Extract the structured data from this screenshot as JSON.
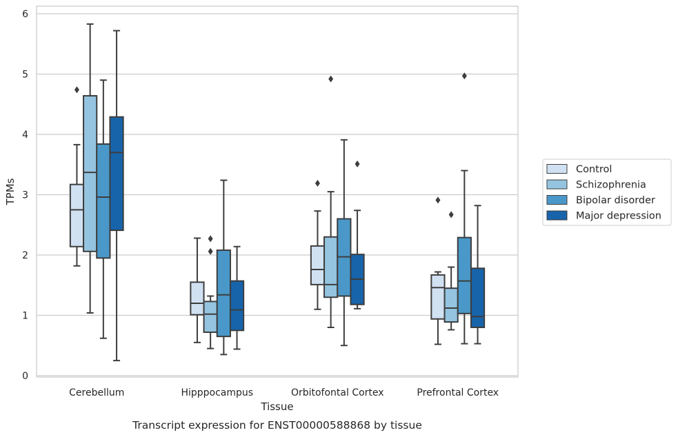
{
  "chart_data": {
    "type": "box",
    "title": "",
    "caption": "Transcript expression for ENST00000588868 by tissue",
    "xlabel": "Tissue",
    "ylabel": "TPMs",
    "ylim": [
      0,
      6.1
    ],
    "yticks": [
      0,
      1,
      2,
      3,
      4,
      5,
      6
    ],
    "grid": "horizontal",
    "legend_position": "right",
    "categories": [
      "Cerebellum",
      "Hipppocampus",
      "Orbitofontal Cortex",
      "Prefrontal Cortex"
    ],
    "series": [
      {
        "name": "Control",
        "color": "#d0e1f2",
        "boxes": [
          {
            "whislo": 1.82,
            "q1": 2.14,
            "med": 2.75,
            "q3": 3.17,
            "whishi": 3.83,
            "fliers": [
              4.74
            ]
          },
          {
            "whislo": 0.55,
            "q1": 1.01,
            "med": 1.2,
            "q3": 1.55,
            "whishi": 2.28,
            "fliers": []
          },
          {
            "whislo": 1.1,
            "q1": 1.51,
            "med": 1.76,
            "q3": 2.15,
            "whishi": 2.73,
            "fliers": [
              3.19
            ]
          },
          {
            "whislo": 0.52,
            "q1": 0.94,
            "med": 1.46,
            "q3": 1.67,
            "whishi": 1.72,
            "fliers": [
              2.91
            ]
          }
        ]
      },
      {
        "name": "Schizophrenia",
        "color": "#94c4df",
        "boxes": [
          {
            "whislo": 1.04,
            "q1": 2.06,
            "med": 3.37,
            "q3": 4.64,
            "whishi": 5.83,
            "fliers": []
          },
          {
            "whislo": 0.45,
            "q1": 0.72,
            "med": 1.02,
            "q3": 1.23,
            "whishi": 1.32,
            "fliers": [
              2.06,
              2.27
            ]
          },
          {
            "whislo": 0.8,
            "q1": 1.3,
            "med": 1.51,
            "q3": 2.3,
            "whishi": 3.05,
            "fliers": [
              4.92
            ]
          },
          {
            "whislo": 0.76,
            "q1": 0.89,
            "med": 1.12,
            "q3": 1.45,
            "whishi": 1.8,
            "fliers": [
              2.67
            ]
          }
        ]
      },
      {
        "name": "Bipolar disorder",
        "color": "#4a98c9",
        "boxes": [
          {
            "whislo": 0.62,
            "q1": 1.95,
            "med": 2.96,
            "q3": 3.84,
            "whishi": 4.9,
            "fliers": []
          },
          {
            "whislo": 0.35,
            "q1": 0.65,
            "med": 1.34,
            "q3": 2.08,
            "whishi": 3.24,
            "fliers": []
          },
          {
            "whislo": 0.5,
            "q1": 1.32,
            "med": 1.97,
            "q3": 2.6,
            "whishi": 3.91,
            "fliers": []
          },
          {
            "whislo": 0.53,
            "q1": 1.03,
            "med": 1.57,
            "q3": 2.29,
            "whishi": 3.4,
            "fliers": [
              4.97
            ]
          }
        ]
      },
      {
        "name": "Major depression",
        "color": "#1764ab",
        "boxes": [
          {
            "whislo": 0.25,
            "q1": 2.41,
            "med": 3.7,
            "q3": 4.29,
            "whishi": 5.72,
            "fliers": []
          },
          {
            "whislo": 0.44,
            "q1": 0.75,
            "med": 1.09,
            "q3": 1.57,
            "whishi": 2.14,
            "fliers": []
          },
          {
            "whislo": 1.11,
            "q1": 1.18,
            "med": 1.6,
            "q3": 2.01,
            "whishi": 2.74,
            "fliers": [
              3.51
            ]
          },
          {
            "whislo": 0.53,
            "q1": 0.8,
            "med": 0.98,
            "q3": 1.78,
            "whishi": 2.82,
            "fliers": []
          }
        ]
      }
    ]
  },
  "colors": {
    "grid": "#cccccc",
    "frame": "#cccccc",
    "box_edge": "#3d3d3d",
    "text": "#262626"
  }
}
